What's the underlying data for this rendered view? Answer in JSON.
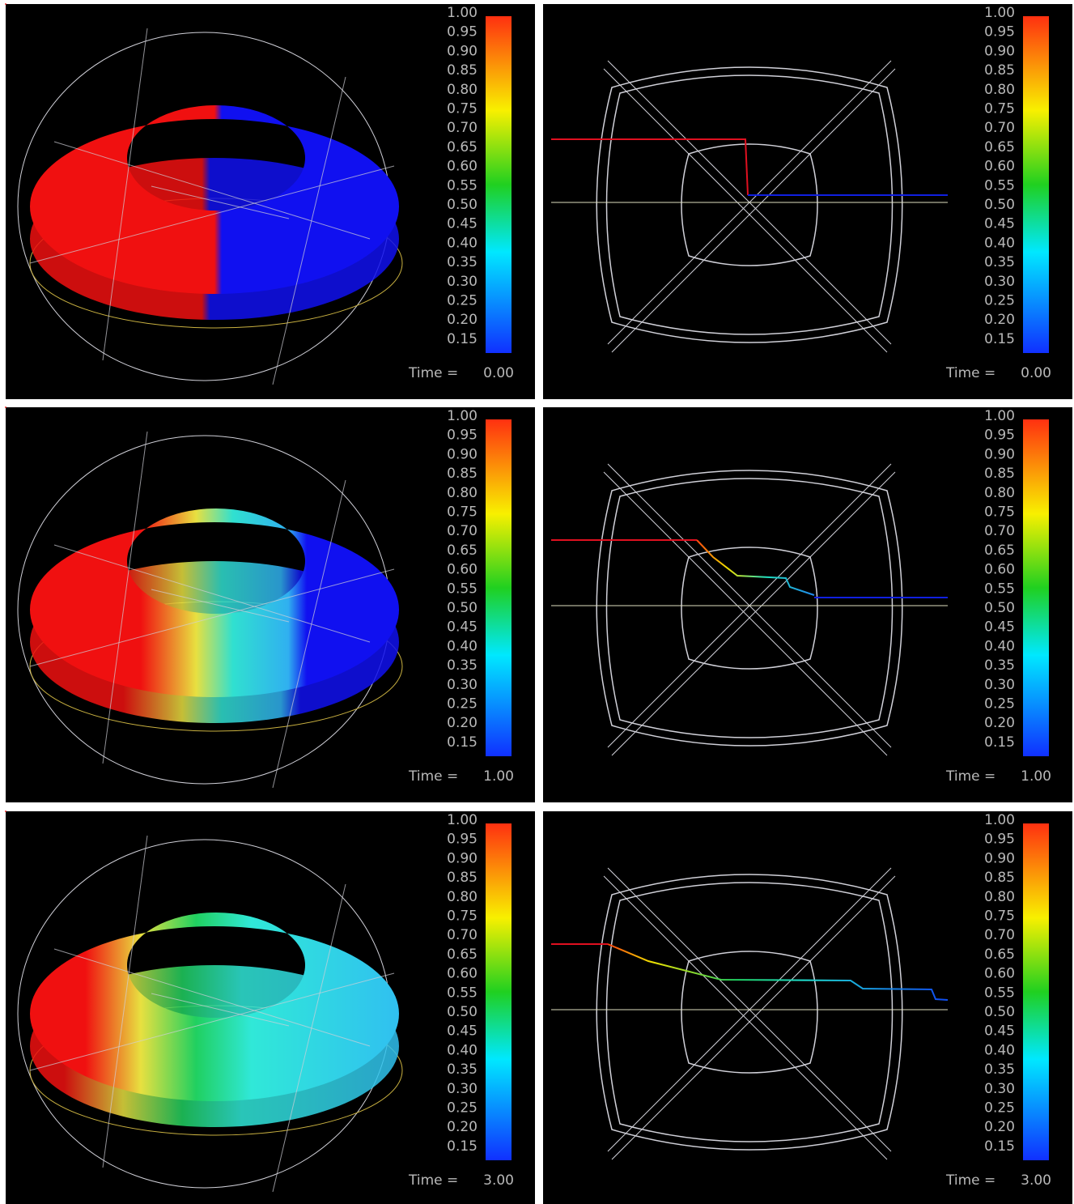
{
  "colorbar": {
    "labels": [
      "1.00",
      "0.95",
      "0.90",
      "0.85",
      "0.80",
      "0.75",
      "0.70",
      "0.65",
      "0.60",
      "0.55",
      "0.50",
      "0.45",
      "0.40",
      "0.35",
      "0.30",
      "0.25",
      "0.20",
      "0.15"
    ]
  },
  "panels": [
    {
      "time_label": "Time =",
      "time": "0.00"
    },
    {
      "time_label": "Time =",
      "time": "0.00"
    },
    {
      "time_label": "Time =",
      "time": "1.00"
    },
    {
      "time_label": "Time =",
      "time": "1.00"
    },
    {
      "time_label": "Time =",
      "time": "3.00"
    },
    {
      "time_label": "Time =",
      "time": "3.00"
    }
  ]
}
